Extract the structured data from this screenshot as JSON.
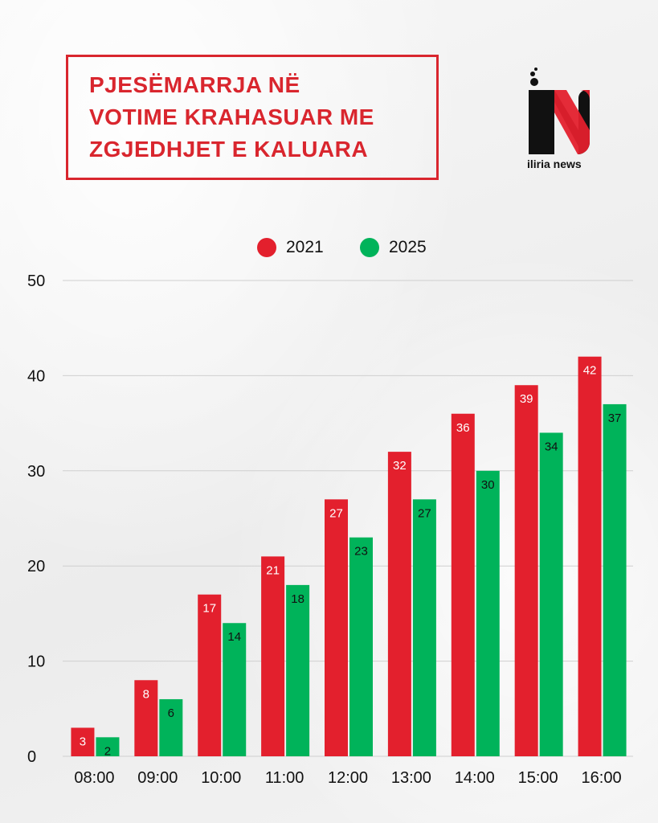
{
  "header": {
    "title_lines": [
      "PJESËMARRJA NË",
      "VOTIME KRAHASUAR ME",
      "ZGJEDHJET E KALUARA"
    ],
    "brand": "iliria news"
  },
  "colors": {
    "red": "#e3202d",
    "green": "#00b35a",
    "title": "#d9262e"
  },
  "chart_data": {
    "type": "bar",
    "categories": [
      "08:00",
      "09:00",
      "10:00",
      "11:00",
      "12:00",
      "13:00",
      "14:00",
      "15:00",
      "16:00"
    ],
    "series": [
      {
        "name": "2021",
        "color": "#e3202d",
        "label_color": "#ffffff",
        "values": [
          3,
          8,
          17,
          21,
          27,
          32,
          36,
          39,
          42
        ]
      },
      {
        "name": "2025",
        "color": "#00b35a",
        "label_color": "#111111",
        "values": [
          2,
          6,
          14,
          18,
          23,
          27,
          30,
          34,
          37
        ]
      }
    ],
    "ylim": [
      0,
      50
    ],
    "yticks": [
      0,
      10,
      20,
      30,
      40,
      50
    ],
    "grid": true,
    "legend": "top-center"
  }
}
